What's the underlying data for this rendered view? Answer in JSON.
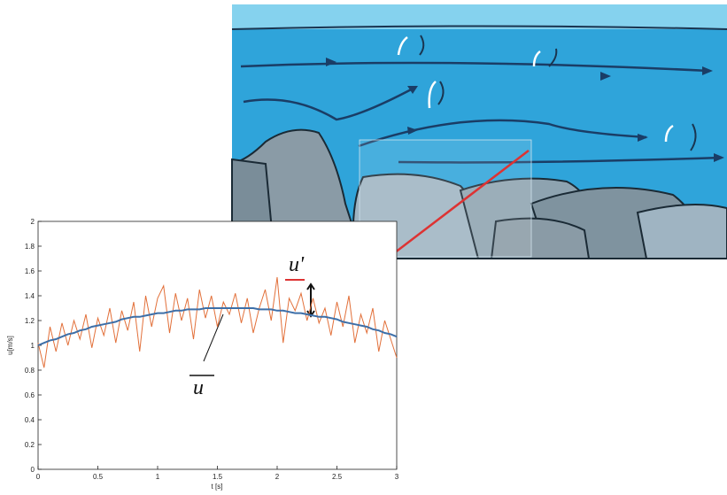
{
  "chart_data": {
    "type": "line",
    "x_label": "t [s]",
    "y_label": "u[m/s]",
    "annotations": [
      "u'",
      "u"
    ],
    "xlim": [
      0,
      3
    ],
    "xticks": [
      0,
      0.5,
      1,
      1.5,
      2,
      2.5,
      3
    ],
    "ylim": [
      0,
      2
    ],
    "yticks": [
      0,
      0.2,
      0.4,
      0.6,
      0.8,
      1,
      1.2,
      1.4,
      1.6,
      1.8,
      2
    ],
    "x": [
      0,
      0.05,
      0.1,
      0.15,
      0.2,
      0.25,
      0.3,
      0.35,
      0.4,
      0.45,
      0.5,
      0.55,
      0.6,
      0.65,
      0.7,
      0.75,
      0.8,
      0.85,
      0.9,
      0.95,
      1,
      1.05,
      1.1,
      1.15,
      1.2,
      1.25,
      1.3,
      1.35,
      1.4,
      1.45,
      1.5,
      1.55,
      1.6,
      1.65,
      1.7,
      1.75,
      1.8,
      1.85,
      1.9,
      1.95,
      2,
      2.05,
      2.1,
      2.15,
      2.2,
      2.25,
      2.3,
      2.35,
      2.4,
      2.45,
      2.5,
      2.55,
      2.6,
      2.65,
      2.7,
      2.75,
      2.8,
      2.85,
      2.9,
      2.95,
      3
    ],
    "series": [
      {
        "color": "#e2703a",
        "values": [
          1.02,
          0.82,
          1.15,
          0.95,
          1.18,
          1.0,
          1.2,
          1.05,
          1.25,
          0.98,
          1.22,
          1.08,
          1.3,
          1.02,
          1.28,
          1.12,
          1.35,
          0.95,
          1.4,
          1.15,
          1.38,
          1.48,
          1.1,
          1.42,
          1.2,
          1.38,
          1.05,
          1.45,
          1.22,
          1.4,
          1.15,
          1.35,
          1.25,
          1.42,
          1.18,
          1.38,
          1.1,
          1.3,
          1.45,
          1.2,
          1.55,
          1.02,
          1.38,
          1.28,
          1.42,
          1.2,
          1.38,
          1.18,
          1.3,
          1.08,
          1.35,
          1.15,
          1.4,
          1.02,
          1.25,
          1.1,
          1.3,
          0.95,
          1.2,
          1.05,
          0.9
        ]
      },
      {
        "color": "#3d6fa8",
        "values": [
          1.0,
          1.02,
          1.04,
          1.05,
          1.07,
          1.09,
          1.1,
          1.12,
          1.13,
          1.15,
          1.16,
          1.17,
          1.18,
          1.19,
          1.21,
          1.22,
          1.23,
          1.23,
          1.24,
          1.25,
          1.26,
          1.26,
          1.27,
          1.28,
          1.28,
          1.29,
          1.29,
          1.29,
          1.3,
          1.3,
          1.3,
          1.3,
          1.3,
          1.3,
          1.3,
          1.3,
          1.3,
          1.29,
          1.29,
          1.29,
          1.28,
          1.28,
          1.27,
          1.26,
          1.26,
          1.25,
          1.24,
          1.23,
          1.23,
          1.22,
          1.21,
          1.19,
          1.18,
          1.17,
          1.16,
          1.15,
          1.13,
          1.12,
          1.1,
          1.09,
          1.07
        ]
      }
    ]
  }
}
